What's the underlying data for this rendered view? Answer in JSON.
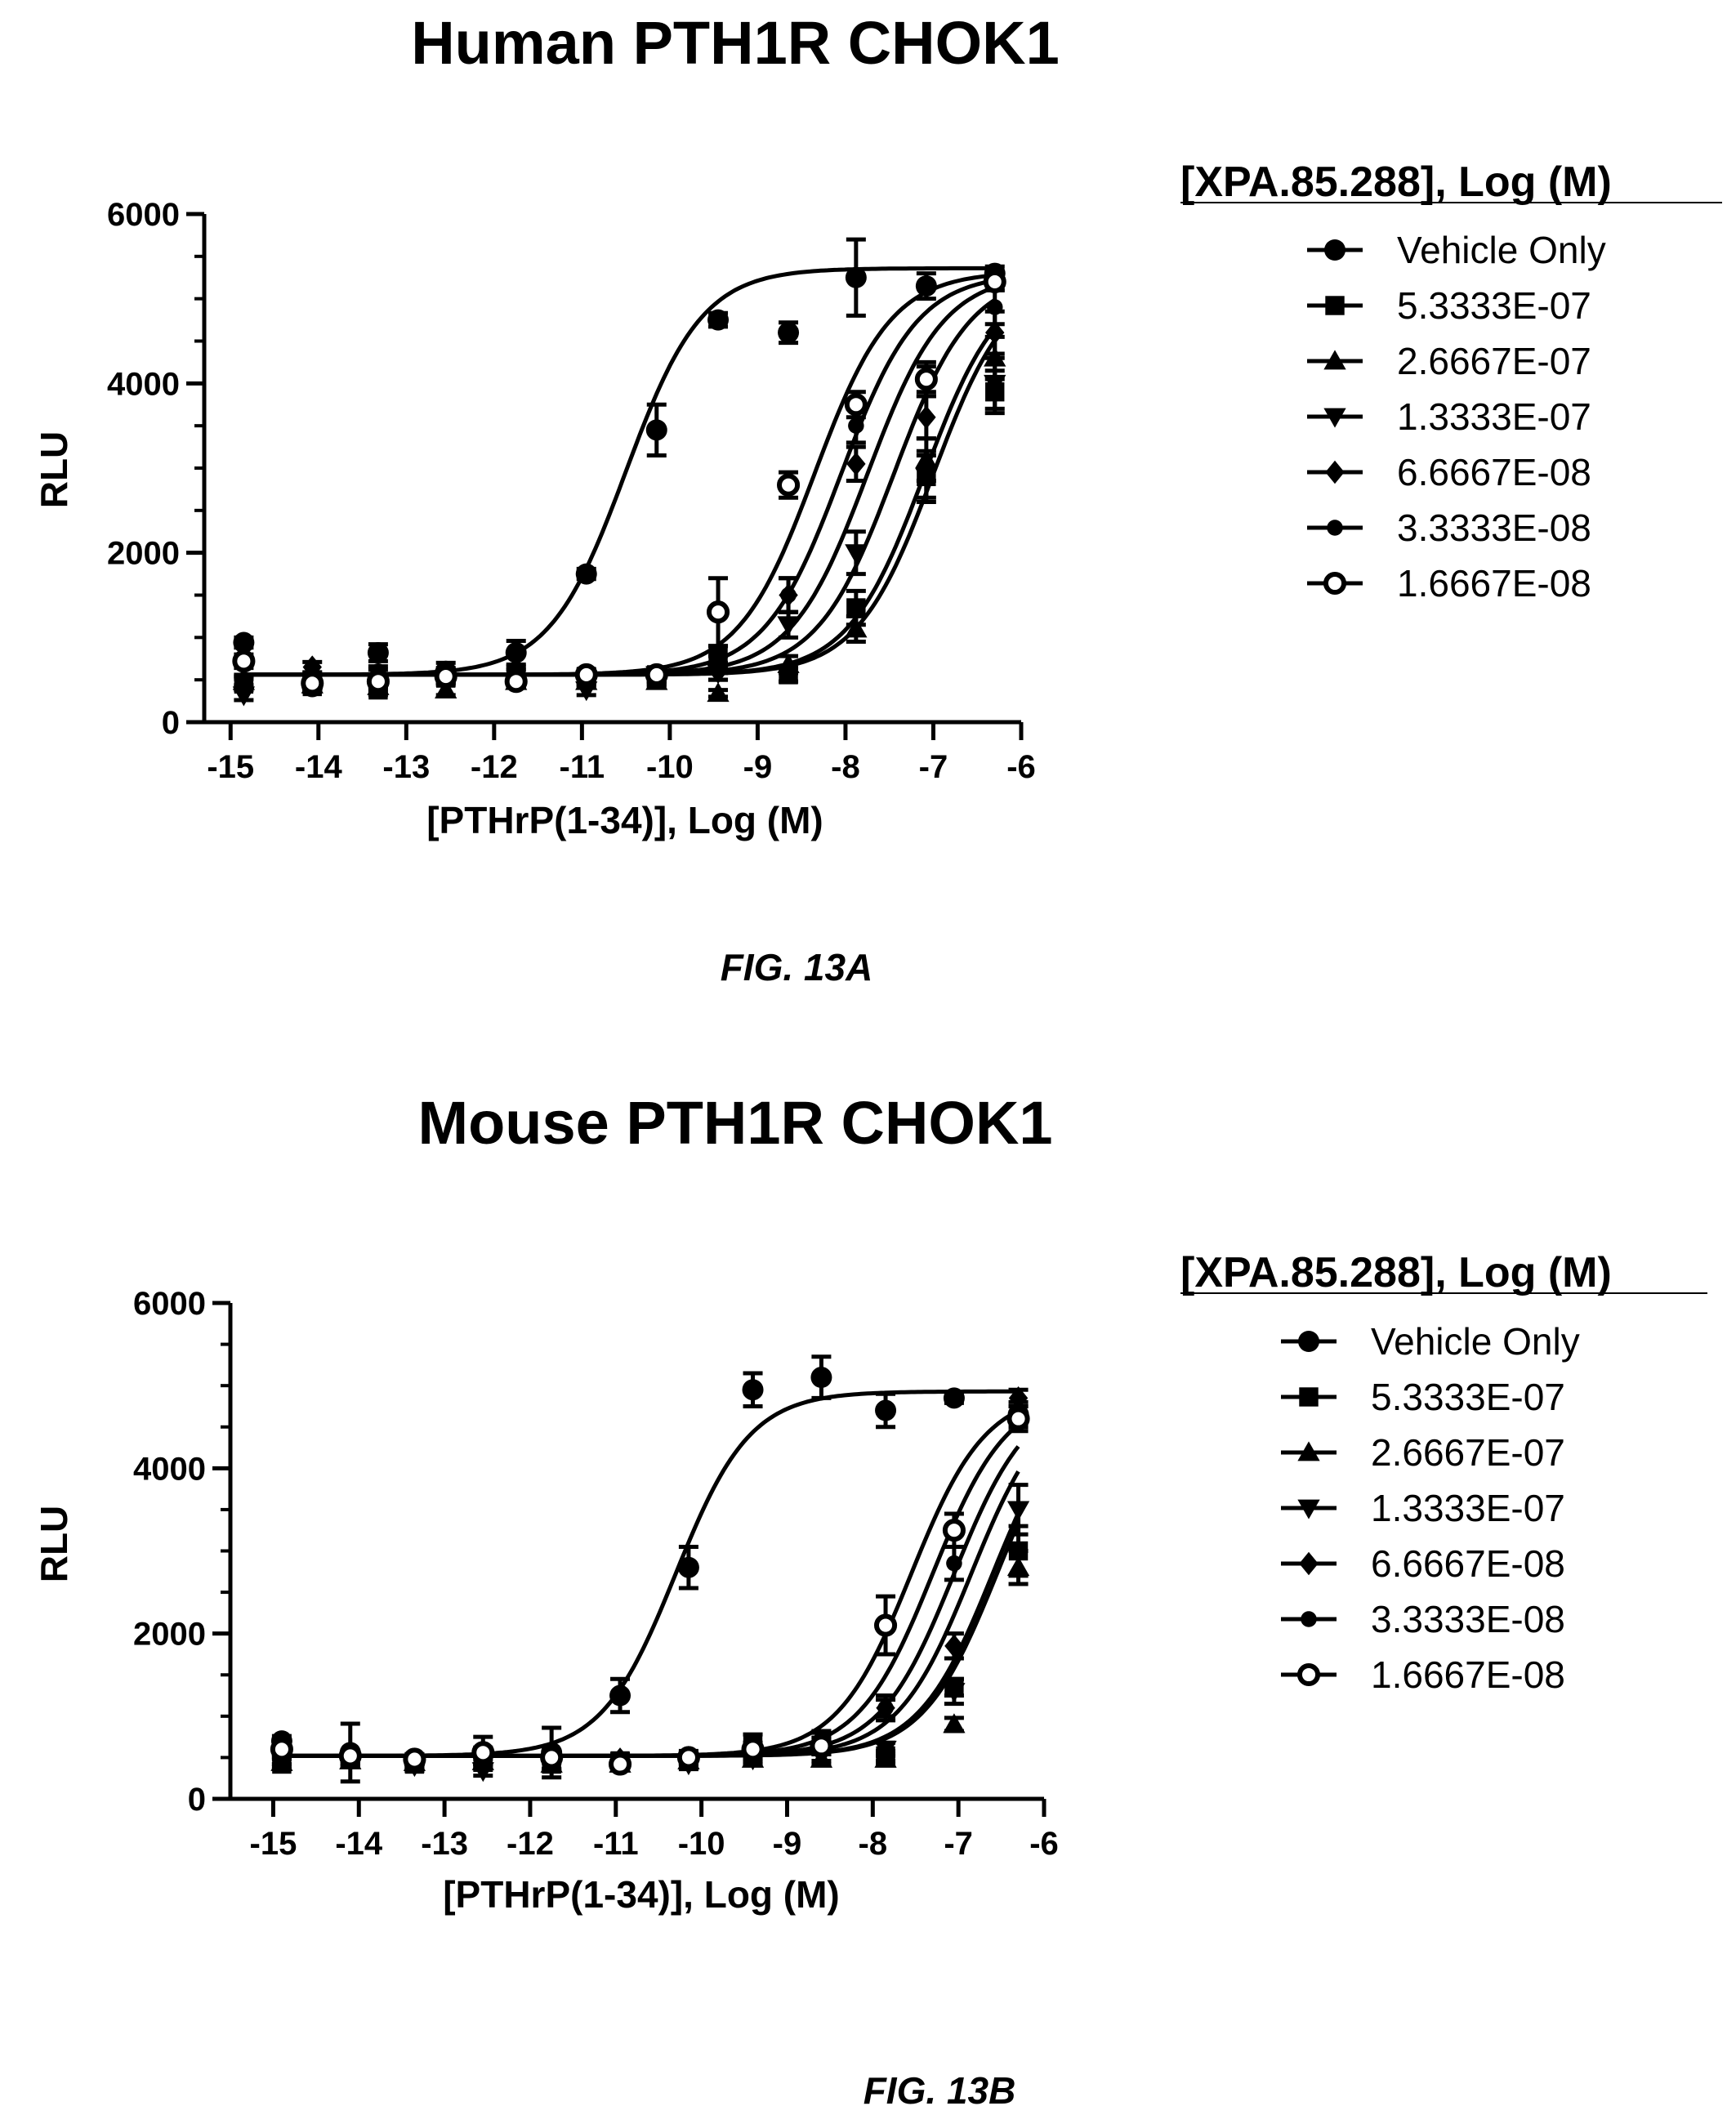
{
  "legend_title": "[XPA.85.288], Log (M)",
  "figures": [
    {
      "caption": "FIG. 13A",
      "chart_data": {
        "type": "scatter",
        "title": "Human PTH1R CHOK1",
        "xlabel": "[PTHrP(1-34)], Log (M)",
        "ylabel": "RLU",
        "xlim": [
          -15.3,
          -6
        ],
        "ylim": [
          0,
          6000
        ],
        "xticks": [
          -15,
          -14,
          -13,
          -12,
          -11,
          -10,
          -9,
          -8,
          -7,
          -6
        ],
        "xtick_labels": [
          "-15",
          "-14",
          "-13",
          "-12",
          "-11",
          "-10",
          "-9",
          "-8",
          "-7",
          "-6"
        ],
        "yticks": [
          0,
          2000,
          4000,
          6000
        ],
        "ytick_labels": [
          "0",
          "2000",
          "4000",
          "6000"
        ],
        "legend_title": "[XPA.85.288], Log (M)",
        "legend_position": "right",
        "x": [
          -14.85,
          -14.07,
          -13.32,
          -12.55,
          -11.75,
          -10.95,
          -10.15,
          -9.45,
          -8.65,
          -7.88,
          -7.08,
          -6.3
        ],
        "series": [
          {
            "name": "Vehicle Only",
            "marker": "circle",
            "fit": {
              "bottom": 560,
              "top": 5360,
              "log_ec50": -10.5,
              "hill": 1.0
            },
            "values": [
              940,
              420,
              820,
              600,
              820,
              1750,
              3450,
              4750,
              4600,
              5250,
              5150,
              5300
            ],
            "errors": [
              60,
              60,
              100,
              100,
              140,
              60,
              300,
              80,
              120,
              450,
              150,
              80
            ]
          },
          {
            "name": "5.3333E-07",
            "marker": "square",
            "fit": {
              "bottom": 560,
              "top": 5300,
              "log_ec50": -7.0,
              "hill": 1.0
            },
            "values": [
              450,
              420,
              380,
              520,
              560,
              540,
              560,
              780,
              560,
              1350,
              2900,
              3900
            ],
            "errors": [
              60,
              60,
              60,
              60,
              60,
              60,
              80,
              120,
              80,
              200,
              250,
              250
            ]
          },
          {
            "name": "2.6667E-07",
            "marker": "triangle-up",
            "fit": {
              "bottom": 560,
              "top": 5300,
              "log_ec50": -7.1,
              "hill": 1.0
            },
            "values": [
              480,
              440,
              420,
              380,
              480,
              480,
              480,
              340,
              680,
              1100,
              3100,
              4300
            ],
            "errors": [
              60,
              60,
              60,
              60,
              60,
              60,
              60,
              40,
              100,
              150,
              250,
              250
            ]
          },
          {
            "name": "1.3333E-07",
            "marker": "triangle-down",
            "fit": {
              "bottom": 560,
              "top": 5300,
              "log_ec50": -7.45,
              "hill": 1.0
            },
            "values": [
              320,
              460,
              460,
              520,
              480,
              380,
              560,
              580,
              1150,
              2000,
              2900,
              4000
            ],
            "errors": [
              60,
              60,
              60,
              60,
              60,
              60,
              80,
              80,
              150,
              250,
              300,
              300
            ]
          },
          {
            "name": "6.6667E-08",
            "marker": "diamond",
            "fit": {
              "bottom": 560,
              "top": 5300,
              "log_ec50": -7.75,
              "hill": 1.0
            },
            "values": [
              480,
              650,
              560,
              560,
              560,
              520,
              520,
              600,
              1500,
              3050,
              3600,
              4600
            ],
            "errors": [
              60,
              60,
              60,
              80,
              60,
              60,
              80,
              100,
              200,
              200,
              250,
              250
            ]
          },
          {
            "name": "3.3333E-08",
            "marker": "circle-small",
            "fit": {
              "bottom": 560,
              "top": 5300,
              "log_ec50": -8.05,
              "hill": 1.0
            },
            "values": [
              500,
              520,
              600,
              560,
              600,
              560,
              540,
              680,
              1500,
              3500,
              4050,
              4900
            ],
            "errors": [
              60,
              60,
              60,
              60,
              60,
              60,
              80,
              100,
              200,
              200,
              200,
              200
            ]
          },
          {
            "name": "1.6667E-08",
            "marker": "circle-open",
            "fit": {
              "bottom": 560,
              "top": 5320,
              "log_ec50": -8.35,
              "hill": 1.0
            },
            "values": [
              720,
              460,
              480,
              540,
              480,
              560,
              560,
              1300,
              2800,
              3750,
              4050,
              5200
            ],
            "errors": [
              80,
              60,
              60,
              60,
              60,
              60,
              80,
              400,
              150,
              150,
              150,
              100
            ]
          }
        ]
      }
    },
    {
      "caption": "FIG. 13B",
      "chart_data": {
        "type": "scatter",
        "title": "Mouse PTH1R CHOK1",
        "xlabel": "[PTHrP(1-34)], Log (M)",
        "ylabel": "RLU",
        "xlim": [
          -15.5,
          -6
        ],
        "ylim": [
          0,
          6000
        ],
        "xticks": [
          -15,
          -14,
          -13,
          -12,
          -11,
          -10,
          -9,
          -8,
          -7,
          -6
        ],
        "xtick_labels": [
          "-15",
          "-14",
          "-13",
          "-12",
          "-11",
          "-10",
          "-9",
          "-8",
          "-7",
          "-6"
        ],
        "yticks": [
          0,
          2000,
          4000,
          6000
        ],
        "ytick_labels": [
          "0",
          "2000",
          "4000",
          "6000"
        ],
        "legend_title": "[XPA.85.288], Log (M)",
        "legend_position": "right",
        "x": [
          -14.9,
          -14.1,
          -13.35,
          -12.55,
          -11.75,
          -10.95,
          -10.15,
          -9.4,
          -8.6,
          -7.85,
          -7.05,
          -6.3
        ],
        "series": [
          {
            "name": "Vehicle Only",
            "marker": "circle",
            "fit": {
              "bottom": 520,
              "top": 4930,
              "log_ec50": -10.3,
              "hill": 1.0
            },
            "values": [
              700,
              560,
              440,
              550,
              560,
              1250,
              2800,
              4950,
              5100,
              4700,
              4850,
              4650
            ],
            "errors": [
              60,
              350,
              60,
              200,
              300,
              200,
              250,
              200,
              250,
              200,
              60,
              100
            ]
          },
          {
            "name": "5.3333E-07",
            "marker": "square",
            "fit": {
              "bottom": 520,
              "top": 4930,
              "log_ec50": -6.55,
              "hill": 1.0
            },
            "values": [
              420,
              480,
              420,
              480,
              420,
              460,
              480,
              680,
              640,
              520,
              1350,
              3000
            ],
            "errors": [
              60,
              60,
              60,
              60,
              60,
              60,
              60,
              100,
              100,
              60,
              100,
              300
            ]
          },
          {
            "name": "2.6667E-07",
            "marker": "triangle-up",
            "fit": {
              "bottom": 520,
              "top": 4930,
              "log_ec50": -6.6,
              "hill": 1.0
            },
            "values": [
              440,
              460,
              440,
              450,
              420,
              420,
              460,
              480,
              480,
              480,
              900,
              2800
            ],
            "errors": [
              60,
              60,
              60,
              60,
              60,
              60,
              60,
              60,
              60,
              60,
              80,
              200
            ]
          },
          {
            "name": "1.3333E-07",
            "marker": "triangle-down",
            "fit": {
              "bottom": 520,
              "top": 4930,
              "log_ec50": -6.85,
              "hill": 1.0
            },
            "values": [
              480,
              460,
              400,
              340,
              400,
              420,
              420,
              480,
              520,
              600,
              1300,
              3500
            ],
            "errors": [
              60,
              60,
              60,
              60,
              60,
              60,
              60,
              60,
              60,
              80,
              150,
              300
            ]
          },
          {
            "name": "6.6667E-08",
            "marker": "diamond",
            "fit": {
              "bottom": 520,
              "top": 4930,
              "log_ec50": -7.05,
              "hill": 1.0
            },
            "values": [
              480,
              500,
              440,
              480,
              500,
              480,
              500,
              540,
              700,
              1100,
              1850,
              4850
            ],
            "errors": [
              60,
              60,
              60,
              60,
              60,
              60,
              60,
              80,
              100,
              100,
              150,
              100
            ]
          },
          {
            "name": "3.3333E-08",
            "marker": "circle-small",
            "fit": {
              "bottom": 520,
              "top": 4930,
              "log_ec50": -7.3,
              "hill": 1.0
            },
            "values": [
              560,
              520,
              480,
              540,
              500,
              480,
              520,
              560,
              720,
              1100,
              2850,
              4650
            ],
            "errors": [
              60,
              60,
              60,
              60,
              60,
              60,
              60,
              80,
              100,
              150,
              200,
              150
            ]
          },
          {
            "name": "1.6667E-08",
            "marker": "circle-open",
            "fit": {
              "bottom": 520,
              "top": 4930,
              "log_ec50": -7.55,
              "hill": 1.0
            },
            "values": [
              600,
              520,
              480,
              560,
              500,
              420,
              500,
              600,
              640,
              2100,
              3250,
              4600
            ],
            "errors": [
              60,
              60,
              60,
              60,
              60,
              60,
              60,
              80,
              100,
              350,
              200,
              150
            ]
          }
        ]
      }
    }
  ]
}
